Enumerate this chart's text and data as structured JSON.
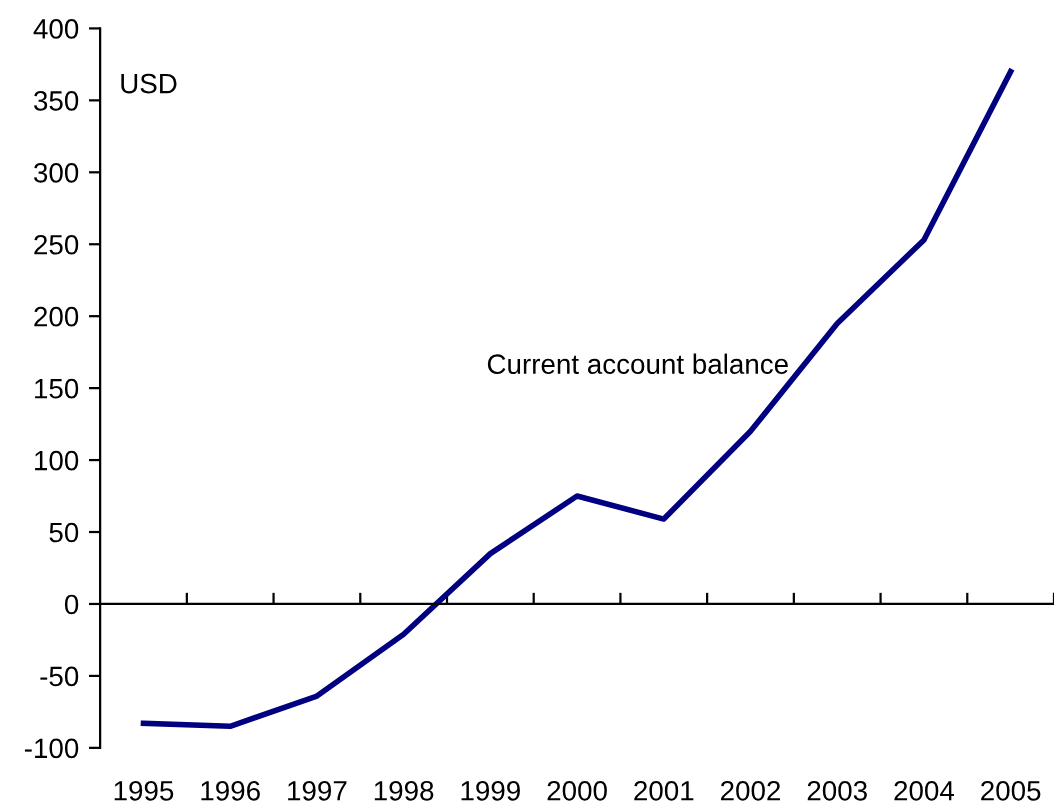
{
  "chart_data": {
    "type": "line",
    "ylabel": "USD",
    "categories": [
      "1995",
      "1996",
      "1997",
      "1998",
      "1999",
      "2000",
      "2001",
      "2002",
      "2003",
      "2004",
      "2005"
    ],
    "series": [
      {
        "name": "Current account balance",
        "color": "#000080",
        "values": [
          -83,
          -85,
          -64,
          -21,
          35,
          75,
          59,
          120,
          195,
          253,
          370
        ]
      }
    ],
    "ylim": [
      -100,
      400
    ],
    "yticks": [
      -100,
      -50,
      0,
      50,
      100,
      150,
      200,
      250,
      300,
      350,
      400
    ],
    "legend": false,
    "marker": "none",
    "line_style": "solid"
  }
}
